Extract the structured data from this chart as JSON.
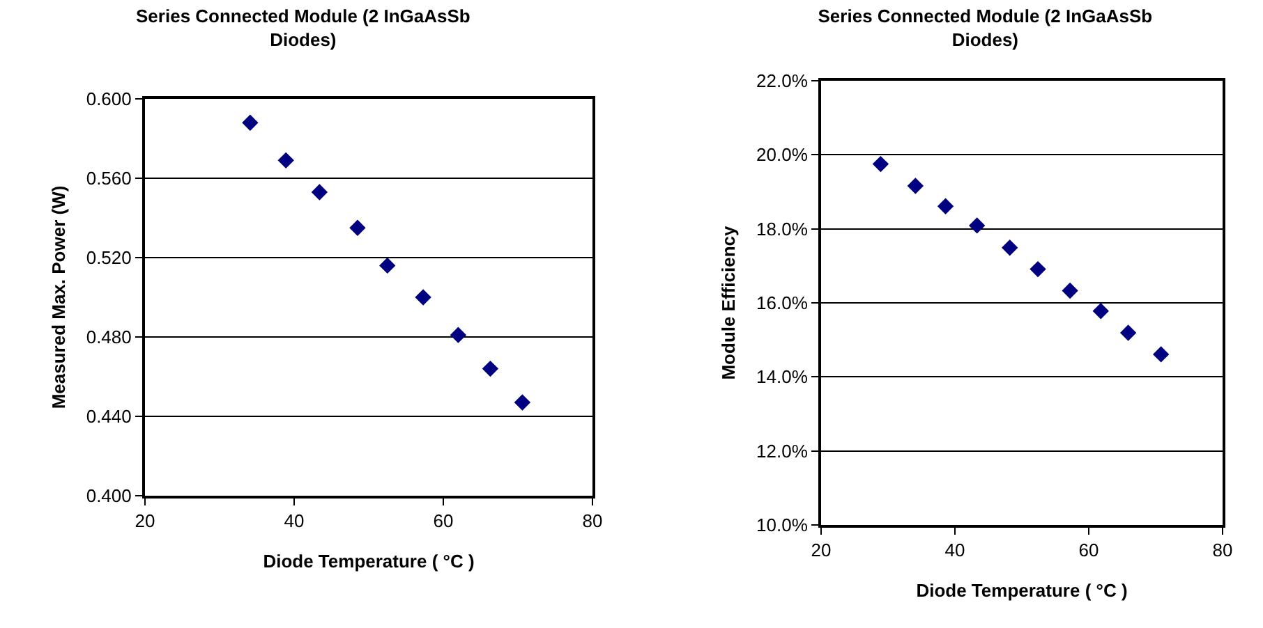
{
  "chart_data": [
    {
      "type": "scatter",
      "title": "Series Connected Module (2 InGaAsSb Diodes)",
      "xlabel": "Diode Temperature ( °C )",
      "ylabel": "Measured Max. Power (W)",
      "x": [
        34.1,
        38.9,
        43.4,
        48.5,
        52.5,
        57.3,
        62.0,
        66.3,
        70.6
      ],
      "series": [
        {
          "color": "#000080",
          "values": [
            0.588,
            0.569,
            0.553,
            0.535,
            0.516,
            0.5,
            0.481,
            0.464,
            0.447
          ]
        }
      ],
      "xlim": [
        20,
        80
      ],
      "xticks": [
        20,
        40,
        60,
        80
      ],
      "ylim": [
        0.4,
        0.6
      ],
      "yticks": [
        {
          "value": 0.4,
          "label": "0.400"
        },
        {
          "value": 0.44,
          "label": "0.440"
        },
        {
          "value": 0.48,
          "label": "0.480"
        },
        {
          "value": 0.52,
          "label": "0.520"
        },
        {
          "value": 0.56,
          "label": "0.560"
        },
        {
          "value": 0.6,
          "label": "0.600"
        }
      ],
      "grid": "y",
      "marker": "diamond"
    },
    {
      "type": "scatter",
      "title": "Series Connected Module (2 InGaAsSb Diodes)",
      "xlabel": "Diode Temperature ( °C )",
      "ylabel": "Module Efficiency",
      "x": [
        28.9,
        34.1,
        38.6,
        43.3,
        48.2,
        52.4,
        57.2,
        61.8,
        65.9,
        70.8
      ],
      "series": [
        {
          "color": "#000080",
          "values": [
            19.75,
            19.16,
            18.61,
            18.09,
            17.49,
            16.91,
            16.33,
            15.78,
            15.19,
            14.61
          ]
        }
      ],
      "xlim": [
        20,
        80
      ],
      "xticks": [
        20,
        40,
        60,
        80
      ],
      "ylim": [
        10,
        22
      ],
      "yticks": [
        {
          "value": 10,
          "label": "10.0%"
        },
        {
          "value": 12,
          "label": "12.0%"
        },
        {
          "value": 14,
          "label": "14.0%"
        },
        {
          "value": 16,
          "label": "16.0%"
        },
        {
          "value": 18,
          "label": "18.0%"
        },
        {
          "value": 20,
          "label": "20.0%"
        },
        {
          "value": 22,
          "label": "22.0%"
        }
      ],
      "grid": "y",
      "marker": "diamond"
    }
  ]
}
